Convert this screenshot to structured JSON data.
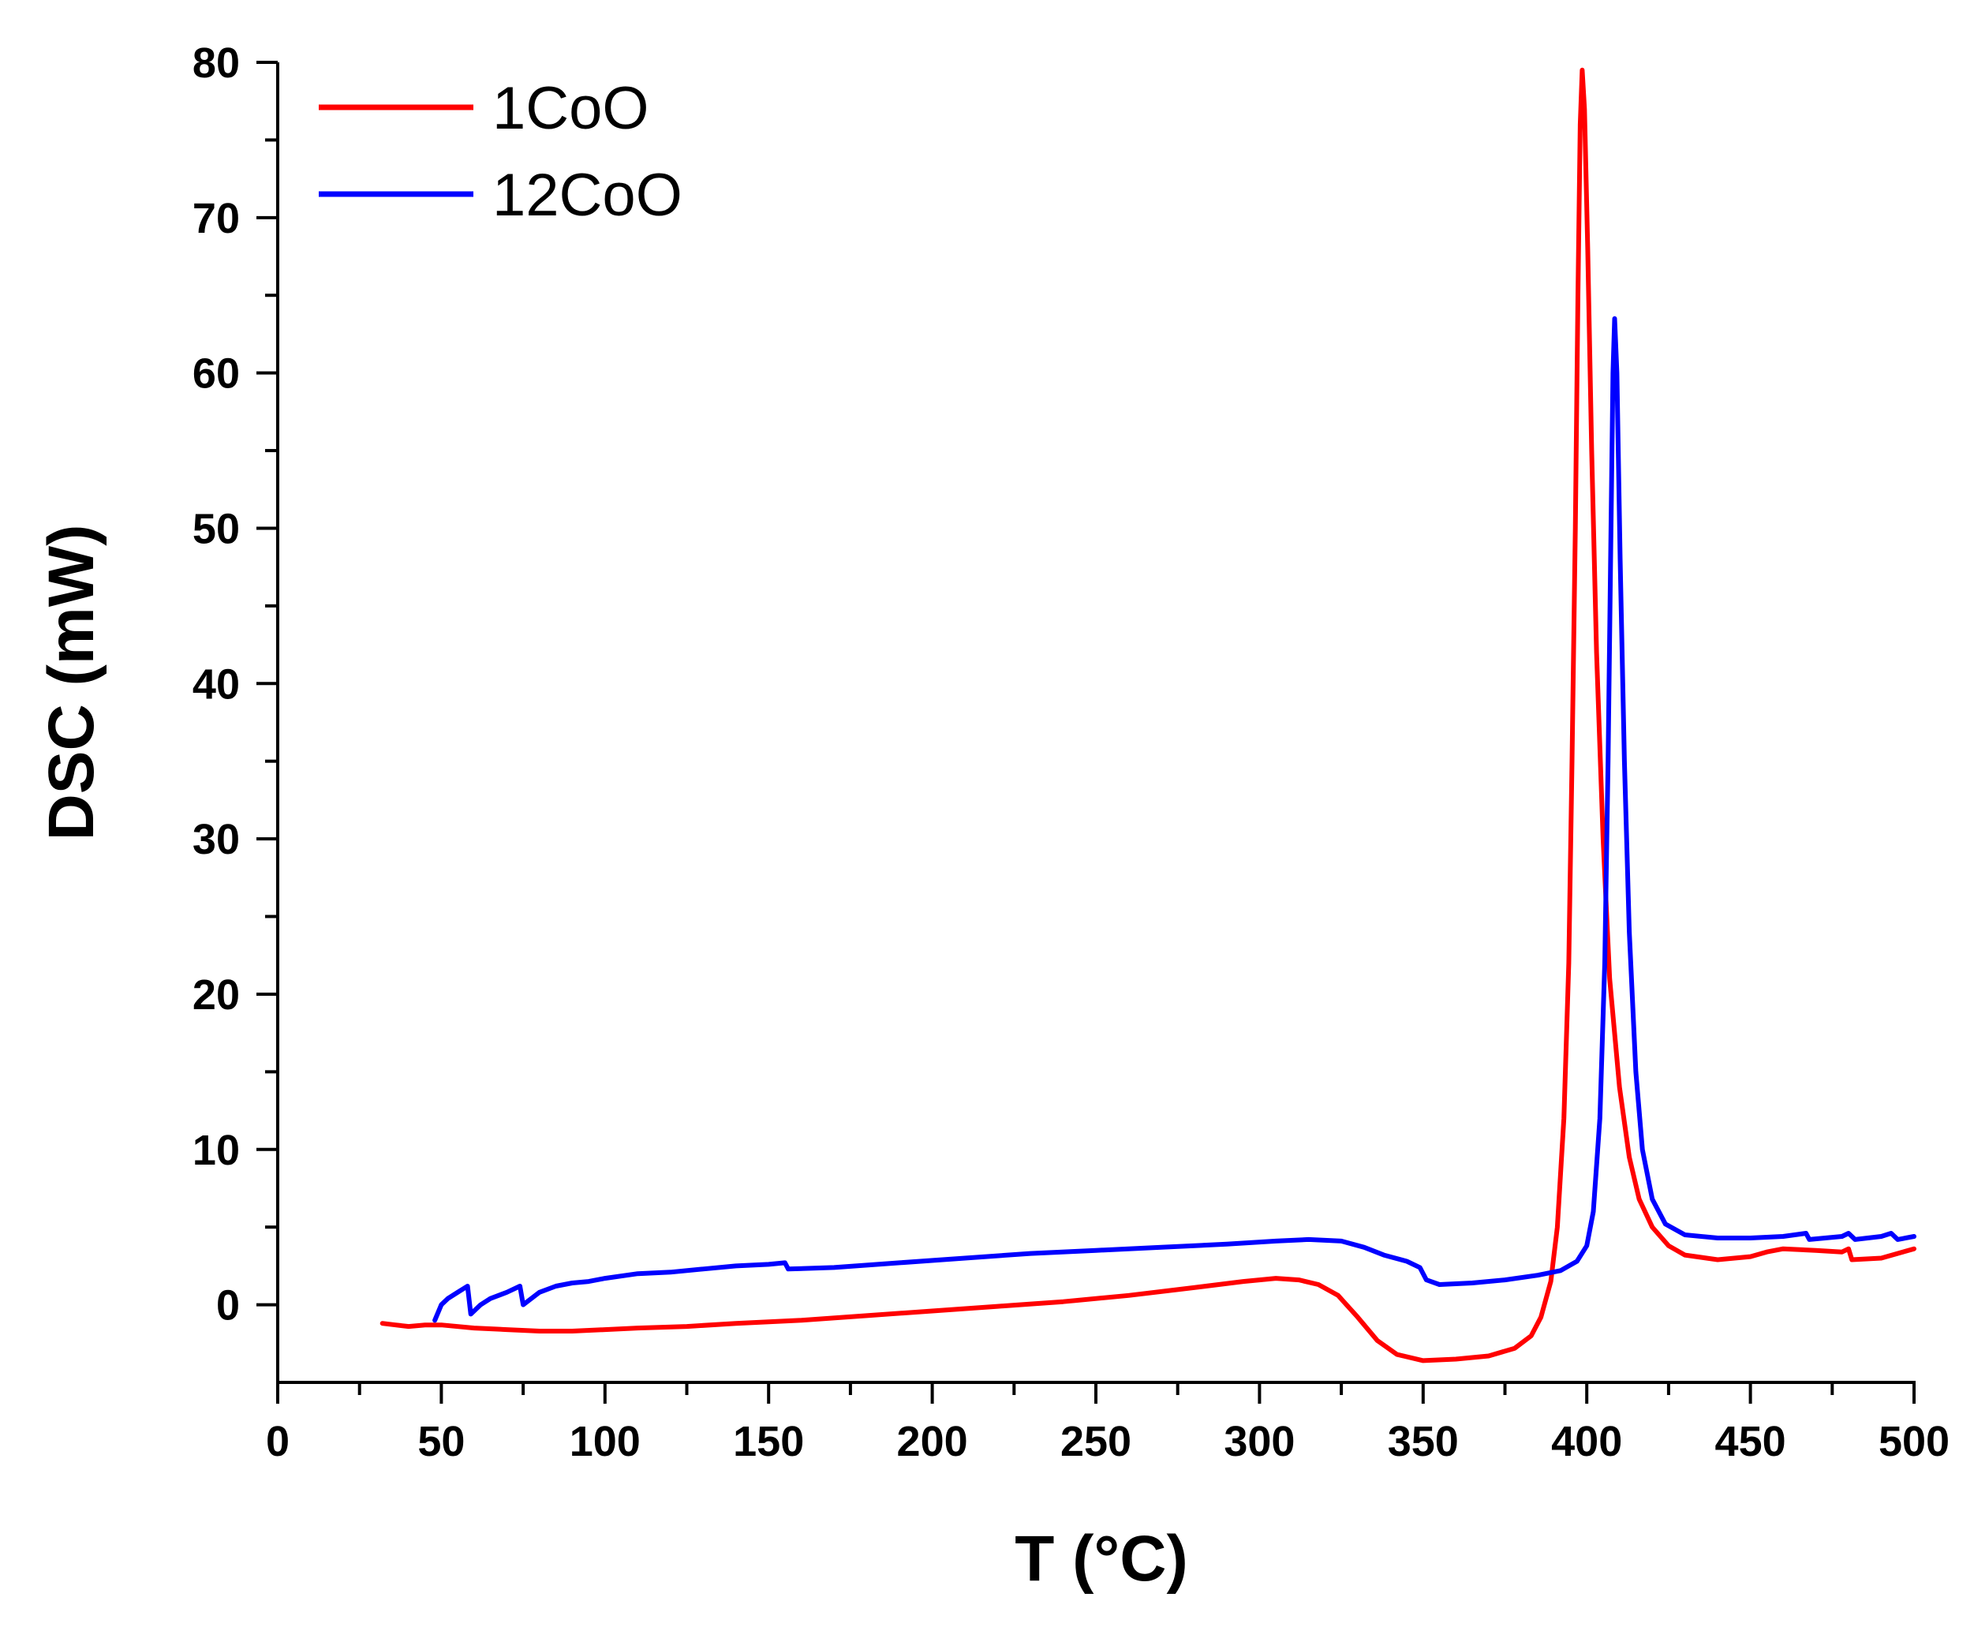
{
  "chart_data": {
    "type": "line",
    "title": "",
    "xlabel": "T (°C)",
    "ylabel": "DSC (mW)",
    "xlim": [
      0,
      500
    ],
    "ylim": [
      -5,
      80
    ],
    "x_ticks": [
      0,
      50,
      100,
      150,
      200,
      250,
      300,
      350,
      400,
      450,
      500
    ],
    "x_tick_labels": [
      "0",
      "50",
      "100",
      "150",
      "200",
      "250",
      "300",
      "350",
      "400",
      "450",
      "500"
    ],
    "y_ticks": [
      0,
      10,
      20,
      30,
      40,
      50,
      60,
      70,
      80
    ],
    "y_tick_labels": [
      "0",
      "10",
      "20",
      "30",
      "40",
      "50",
      "60",
      "70",
      "80"
    ],
    "x_minor_step": 25,
    "y_minor_step": 5,
    "grid": false,
    "legend_position": "top-left",
    "series": [
      {
        "name": "1CoO",
        "color": "#ff0000",
        "points": [
          [
            32,
            -1.2
          ],
          [
            36,
            -1.3
          ],
          [
            40,
            -1.4
          ],
          [
            45,
            -1.3
          ],
          [
            50,
            -1.3
          ],
          [
            60,
            -1.5
          ],
          [
            70,
            -1.6
          ],
          [
            80,
            -1.7
          ],
          [
            90,
            -1.7
          ],
          [
            100,
            -1.6
          ],
          [
            110,
            -1.5
          ],
          [
            125,
            -1.4
          ],
          [
            140,
            -1.2
          ],
          [
            160,
            -1.0
          ],
          [
            180,
            -0.7
          ],
          [
            200,
            -0.4
          ],
          [
            220,
            -0.1
          ],
          [
            240,
            0.2
          ],
          [
            260,
            0.6
          ],
          [
            280,
            1.1
          ],
          [
            295,
            1.5
          ],
          [
            305,
            1.7
          ],
          [
            312,
            1.6
          ],
          [
            318,
            1.3
          ],
          [
            324,
            0.6
          ],
          [
            330,
            -0.8
          ],
          [
            336,
            -2.3
          ],
          [
            342,
            -3.2
          ],
          [
            350,
            -3.6
          ],
          [
            360,
            -3.5
          ],
          [
            370,
            -3.3
          ],
          [
            378,
            -2.8
          ],
          [
            383,
            -2.0
          ],
          [
            386,
            -0.8
          ],
          [
            389,
            1.5
          ],
          [
            391,
            5.0
          ],
          [
            393,
            12.0
          ],
          [
            394.5,
            22.0
          ],
          [
            395.5,
            35.0
          ],
          [
            396.5,
            50.0
          ],
          [
            397.3,
            65.0
          ],
          [
            398,
            76.0
          ],
          [
            398.6,
            79.5
          ],
          [
            399.3,
            77.0
          ],
          [
            400.3,
            68.0
          ],
          [
            401.5,
            55.0
          ],
          [
            403,
            42.0
          ],
          [
            405,
            30.0
          ],
          [
            407,
            21.0
          ],
          [
            410,
            14.0
          ],
          [
            413,
            9.5
          ],
          [
            416,
            6.8
          ],
          [
            420,
            5.0
          ],
          [
            425,
            3.8
          ],
          [
            430,
            3.2
          ],
          [
            440,
            2.9
          ],
          [
            450,
            3.1
          ],
          [
            455,
            3.4
          ],
          [
            460,
            3.6
          ],
          [
            470,
            3.5
          ],
          [
            478,
            3.4
          ],
          [
            480,
            3.6
          ],
          [
            481,
            2.9
          ],
          [
            490,
            3.0
          ],
          [
            500,
            3.6
          ]
        ]
      },
      {
        "name": "12CoO",
        "color": "#0000ff",
        "points": [
          [
            48,
            -1.0
          ],
          [
            50,
            0.0
          ],
          [
            52,
            0.4
          ],
          [
            55,
            0.8
          ],
          [
            58,
            1.2
          ],
          [
            59,
            -0.6
          ],
          [
            62,
            0.0
          ],
          [
            65,
            0.4
          ],
          [
            70,
            0.8
          ],
          [
            74,
            1.2
          ],
          [
            75,
            0.0
          ],
          [
            80,
            0.8
          ],
          [
            85,
            1.2
          ],
          [
            90,
            1.4
          ],
          [
            95,
            1.5
          ],
          [
            100,
            1.7
          ],
          [
            110,
            2.0
          ],
          [
            120,
            2.1
          ],
          [
            130,
            2.3
          ],
          [
            140,
            2.5
          ],
          [
            150,
            2.6
          ],
          [
            155,
            2.7
          ],
          [
            156,
            2.3
          ],
          [
            170,
            2.4
          ],
          [
            190,
            2.7
          ],
          [
            210,
            3.0
          ],
          [
            230,
            3.3
          ],
          [
            250,
            3.5
          ],
          [
            270,
            3.7
          ],
          [
            290,
            3.9
          ],
          [
            305,
            4.1
          ],
          [
            315,
            4.2
          ],
          [
            325,
            4.1
          ],
          [
            332,
            3.7
          ],
          [
            338,
            3.2
          ],
          [
            345,
            2.8
          ],
          [
            349,
            2.4
          ],
          [
            351,
            1.6
          ],
          [
            355,
            1.3
          ],
          [
            365,
            1.4
          ],
          [
            375,
            1.6
          ],
          [
            385,
            1.9
          ],
          [
            392,
            2.2
          ],
          [
            397,
            2.8
          ],
          [
            400,
            3.8
          ],
          [
            402,
            6.0
          ],
          [
            404,
            12.0
          ],
          [
            405.5,
            22.0
          ],
          [
            406.5,
            35.0
          ],
          [
            407.4,
            50.0
          ],
          [
            408,
            60.0
          ],
          [
            408.5,
            63.5
          ],
          [
            409.2,
            60.0
          ],
          [
            410.2,
            48.0
          ],
          [
            411.5,
            35.0
          ],
          [
            413,
            24.0
          ],
          [
            415,
            15.0
          ],
          [
            417,
            10.0
          ],
          [
            420,
            6.8
          ],
          [
            424,
            5.2
          ],
          [
            430,
            4.5
          ],
          [
            440,
            4.3
          ],
          [
            450,
            4.3
          ],
          [
            460,
            4.4
          ],
          [
            467,
            4.6
          ],
          [
            468,
            4.2
          ],
          [
            478,
            4.4
          ],
          [
            480,
            4.6
          ],
          [
            482,
            4.2
          ],
          [
            490,
            4.4
          ],
          [
            493,
            4.6
          ],
          [
            495,
            4.2
          ],
          [
            500,
            4.4
          ]
        ]
      }
    ]
  }
}
